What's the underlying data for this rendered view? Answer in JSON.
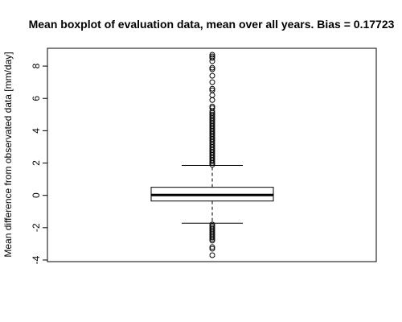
{
  "chart_data": {
    "type": "boxplot",
    "title": "Mean boxplot of evaluation data, mean over all years. Bias = 0.17723",
    "xlabel": "",
    "ylabel": "Mean difference from observated data [mm/day]",
    "ylim": [
      -4.1,
      9.1
    ],
    "yticks": [
      -4,
      -2,
      0,
      2,
      4,
      6,
      8
    ],
    "ytick_labels": [
      "-4",
      "-2",
      "0",
      "2",
      "4",
      "6",
      "8"
    ],
    "grid": false,
    "legend": "none",
    "box": {
      "q1": -0.35,
      "median": 0.02,
      "q3": 0.5,
      "whisker_low": -1.72,
      "whisker_high": 1.85
    },
    "outliers_high": [
      1.9,
      2.0,
      2.1,
      2.2,
      2.3,
      2.4,
      2.5,
      2.6,
      2.7,
      2.8,
      2.9,
      3.0,
      3.1,
      3.2,
      3.3,
      3.4,
      3.5,
      3.6,
      3.7,
      3.8,
      3.9,
      4.0,
      4.1,
      4.2,
      4.3,
      4.4,
      4.5,
      4.6,
      4.7,
      4.8,
      4.9,
      5.0,
      5.1,
      5.2,
      5.4,
      5.5,
      5.9,
      6.2,
      6.5,
      6.6,
      7.0,
      7.4,
      7.8,
      7.9,
      8.3,
      8.5,
      8.6,
      8.7
    ],
    "outliers_low": [
      -1.8,
      -1.9,
      -2.0,
      -2.1,
      -2.2,
      -2.3,
      -2.4,
      -2.5,
      -2.6,
      -2.7,
      -2.8,
      -3.2,
      -3.3,
      -3.7
    ],
    "colors": {
      "box_fill": "#ffffff",
      "stroke": "#000000",
      "outlier_stroke": "#000000"
    }
  }
}
